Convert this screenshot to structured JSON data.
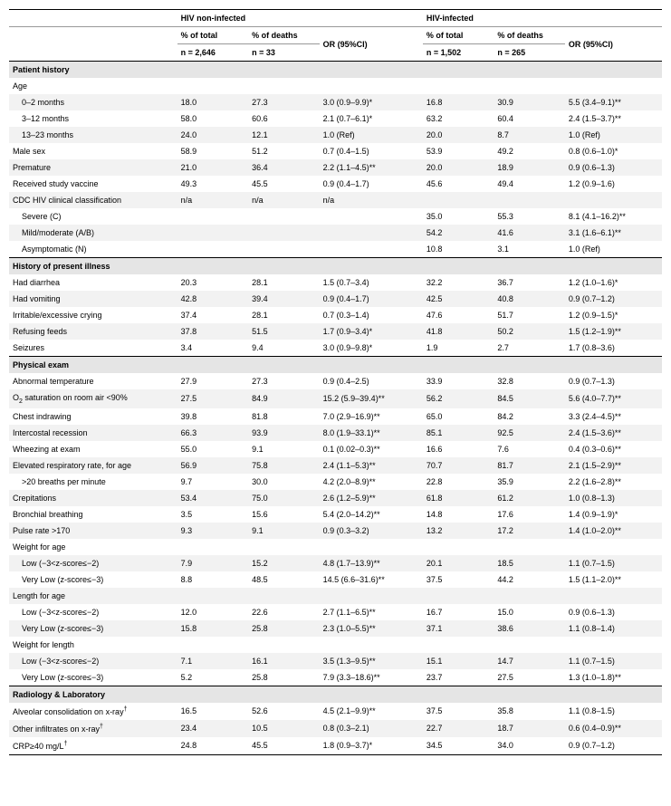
{
  "headers": {
    "group1": "HIV non-infected",
    "group2": "HIV-infected",
    "pct_total": "% of total",
    "pct_deaths": "% of deaths",
    "or": "OR (95%CI)",
    "n1_total": "n = 2,646",
    "n1_deaths": "n = 33",
    "n2_total": "n = 1,502",
    "n2_deaths": "n = 265"
  },
  "sections": [
    {
      "title": "Patient history",
      "rows": [
        {
          "label": "Age",
          "sub": true,
          "v": [
            "",
            "",
            "",
            "",
            "",
            ""
          ]
        },
        {
          "label": "0–2 months",
          "indent": 1,
          "stripe": true,
          "v": [
            "18.0",
            "27.3",
            "3.0 (0.9–9.9)*",
            "16.8",
            "30.9",
            "5.5 (3.4–9.1)**"
          ]
        },
        {
          "label": "3–12 months",
          "indent": 1,
          "v": [
            "58.0",
            "60.6",
            "2.1 (0.7–6.1)*",
            "63.2",
            "60.4",
            "2.4 (1.5–3.7)**"
          ]
        },
        {
          "label": "13–23 months",
          "indent": 1,
          "stripe": true,
          "v": [
            "24.0",
            "12.1",
            "1.0 (Ref)",
            "20.0",
            "8.7",
            "1.0 (Ref)"
          ]
        },
        {
          "label": "Male sex",
          "v": [
            "58.9",
            "51.2",
            "0.7 (0.4–1.5)",
            "53.9",
            "49.2",
            "0.8 (0.6–1.0)*"
          ]
        },
        {
          "label": "Premature",
          "stripe": true,
          "v": [
            "21.0",
            "36.4",
            "2.2 (1.1–4.5)**",
            "20.0",
            "18.9",
            "0.9 (0.6–1.3)"
          ]
        },
        {
          "label": "Received study vaccine",
          "v": [
            "49.3",
            "45.5",
            "0.9 (0.4–1.7)",
            "45.6",
            "49.4",
            "1.2 (0.9–1.6)"
          ]
        },
        {
          "label": "CDC HIV clinical classification",
          "stripe": true,
          "v": [
            "n/a",
            "n/a",
            "n/a",
            "",
            "",
            ""
          ]
        },
        {
          "label": "Severe (C)",
          "indent": 1,
          "v": [
            "",
            "",
            "",
            "35.0",
            "55.3",
            "8.1 (4.1–16.2)**"
          ]
        },
        {
          "label": "Mild/moderate (A/B)",
          "indent": 1,
          "stripe": true,
          "v": [
            "",
            "",
            "",
            "54.2",
            "41.6",
            "3.1 (1.6–6.1)**"
          ]
        },
        {
          "label": "Asymptomatic (N)",
          "indent": 1,
          "v": [
            "",
            "",
            "",
            "10.8",
            "3.1",
            "1.0 (Ref)"
          ]
        }
      ]
    },
    {
      "title": "History of present illness",
      "rows": [
        {
          "label": "Had diarrhea",
          "v": [
            "20.3",
            "28.1",
            "1.5 (0.7–3.4)",
            "32.2",
            "36.7",
            "1.2 (1.0–1.6)*"
          ]
        },
        {
          "label": "Had vomiting",
          "stripe": true,
          "v": [
            "42.8",
            "39.4",
            "0.9 (0.4–1.7)",
            "42.5",
            "40.8",
            "0.9 (0.7–1.2)"
          ]
        },
        {
          "label": "Irritable/excessive crying",
          "v": [
            "37.4",
            "28.1",
            "0.7 (0.3–1.4)",
            "47.6",
            "51.7",
            "1.2 (0.9–1.5)*"
          ]
        },
        {
          "label": "Refusing feeds",
          "stripe": true,
          "v": [
            "37.8",
            "51.5",
            "1.7 (0.9–3.4)*",
            "41.8",
            "50.2",
            "1.5 (1.2–1.9)**"
          ]
        },
        {
          "label": "Seizures",
          "v": [
            "3.4",
            "9.4",
            "3.0 (0.9–9.8)*",
            "1.9",
            "2.7",
            "1.7 (0.8–3.6)"
          ]
        }
      ]
    },
    {
      "title": "Physical exam",
      "rows": [
        {
          "label": "Abnormal temperature",
          "v": [
            "27.9",
            "27.3",
            "0.9 (0.4–2.5)",
            "33.9",
            "32.8",
            "0.9 (0.7–1.3)"
          ]
        },
        {
          "label_html": "O<span class='sub'>2</span> saturation on room air <90%",
          "stripe": true,
          "v": [
            "27.5",
            "84.9",
            "15.2 (5.9–39.4)**",
            "56.2",
            "84.5",
            "5.6 (4.0–7.7)**"
          ]
        },
        {
          "label": "Chest indrawing",
          "v": [
            "39.8",
            "81.8",
            "7.0 (2.9–16.9)**",
            "65.0",
            "84.2",
            "3.3 (2.4–4.5)**"
          ]
        },
        {
          "label": "Intercostal recession",
          "stripe": true,
          "v": [
            "66.3",
            "93.9",
            "8.0 (1.9–33.1)**",
            "85.1",
            "92.5",
            "2.4 (1.5–3.6)**"
          ]
        },
        {
          "label": "Wheezing at exam",
          "v": [
            "55.0",
            "9.1",
            "0.1 (0.02–0.3)**",
            "16.6",
            "7.6",
            "0.4 (0.3–0.6)**"
          ]
        },
        {
          "label": "Elevated respiratory rate, for age",
          "stripe": true,
          "v": [
            "56.9",
            "75.8",
            "2.4 (1.1–5.3)**",
            "70.7",
            "81.7",
            "2.1 (1.5–2.9)**"
          ]
        },
        {
          "label": ">20 breaths per minute",
          "indent": 1,
          "v": [
            "9.7",
            "30.0",
            "4.2 (2.0–8.9)**",
            "22.8",
            "35.9",
            "2.2 (1.6–2.8)**"
          ]
        },
        {
          "label": "Crepitations",
          "stripe": true,
          "v": [
            "53.4",
            "75.0",
            "2.6 (1.2–5.9)**",
            "61.8",
            "61.2",
            "1.0 (0.8–1.3)"
          ]
        },
        {
          "label": "Bronchial breathing",
          "v": [
            "3.5",
            "15.6",
            "5.4 (2.0–14.2)**",
            "14.8",
            "17.6",
            "1.4 (0.9–1.9)*"
          ]
        },
        {
          "label": "Pulse rate >170",
          "stripe": true,
          "v": [
            "9.3",
            "9.1",
            "0.9 (0.3–3.2)",
            "13.2",
            "17.2",
            "1.4 (1.0–2.0)**"
          ]
        },
        {
          "label": "Weight for age",
          "sub": true,
          "v": [
            "",
            "",
            "",
            "",
            "",
            ""
          ]
        },
        {
          "label": "Low (−3<z-score≤−2)",
          "indent": 1,
          "stripe": true,
          "v": [
            "7.9",
            "15.2",
            "4.8 (1.7–13.9)**",
            "20.1",
            "18.5",
            "1.1 (0.7–1.5)"
          ]
        },
        {
          "label": "Very Low (z-score≤−3)",
          "indent": 1,
          "v": [
            "8.8",
            "48.5",
            "14.5 (6.6–31.6)**",
            "37.5",
            "44.2",
            "1.5 (1.1–2.0)**"
          ]
        },
        {
          "label": "Length for age",
          "sub": true,
          "stripe": true,
          "v": [
            "",
            "",
            "",
            "",
            "",
            ""
          ]
        },
        {
          "label": "Low (−3<z-score≤−2)",
          "indent": 1,
          "v": [
            "12.0",
            "22.6",
            "2.7 (1.1–6.5)**",
            "16.7",
            "15.0",
            "0.9 (0.6–1.3)"
          ]
        },
        {
          "label": "Very Low (z-score≤−3)",
          "indent": 1,
          "stripe": true,
          "v": [
            "15.8",
            "25.8",
            "2.3 (1.0–5.5)**",
            "37.1",
            "38.6",
            "1.1 (0.8–1.4)"
          ]
        },
        {
          "label": "Weight for length",
          "sub": true,
          "v": [
            "",
            "",
            "",
            "",
            "",
            ""
          ]
        },
        {
          "label": "Low (−3<z-score≤−2)",
          "indent": 1,
          "stripe": true,
          "v": [
            "7.1",
            "16.1",
            "3.5 (1.3–9.5)**",
            "15.1",
            "14.7",
            "1.1 (0.7–1.5)"
          ]
        },
        {
          "label": "Very Low (z-score≤−3)",
          "indent": 1,
          "v": [
            "5.2",
            "25.8",
            "7.9 (3.3–18.6)**",
            "23.7",
            "27.5",
            "1.3 (1.0–1.8)**"
          ]
        }
      ]
    },
    {
      "title": "Radiology & Laboratory",
      "rows": [
        {
          "label_html": "Alveolar consolidation on x-ray<span class='sup'>†</span>",
          "v": [
            "16.5",
            "52.6",
            "4.5 (2.1–9.9)**",
            "37.5",
            "35.8",
            "1.1 (0.8–1.5)"
          ]
        },
        {
          "label_html": "Other infiltrates on x-ray<span class='sup'>†</span>",
          "stripe": true,
          "v": [
            "23.4",
            "10.5",
            "0.8 (0.3–2.1)",
            "22.7",
            "18.7",
            "0.6 (0.4–0.9)**"
          ]
        },
        {
          "label_html": "CRP≥40 mg/L<span class='sup'>†</span>",
          "v": [
            "24.8",
            "45.5",
            "1.8 (0.9–3.7)*",
            "34.5",
            "34.0",
            "0.9 (0.7–1.2)"
          ]
        }
      ]
    }
  ]
}
